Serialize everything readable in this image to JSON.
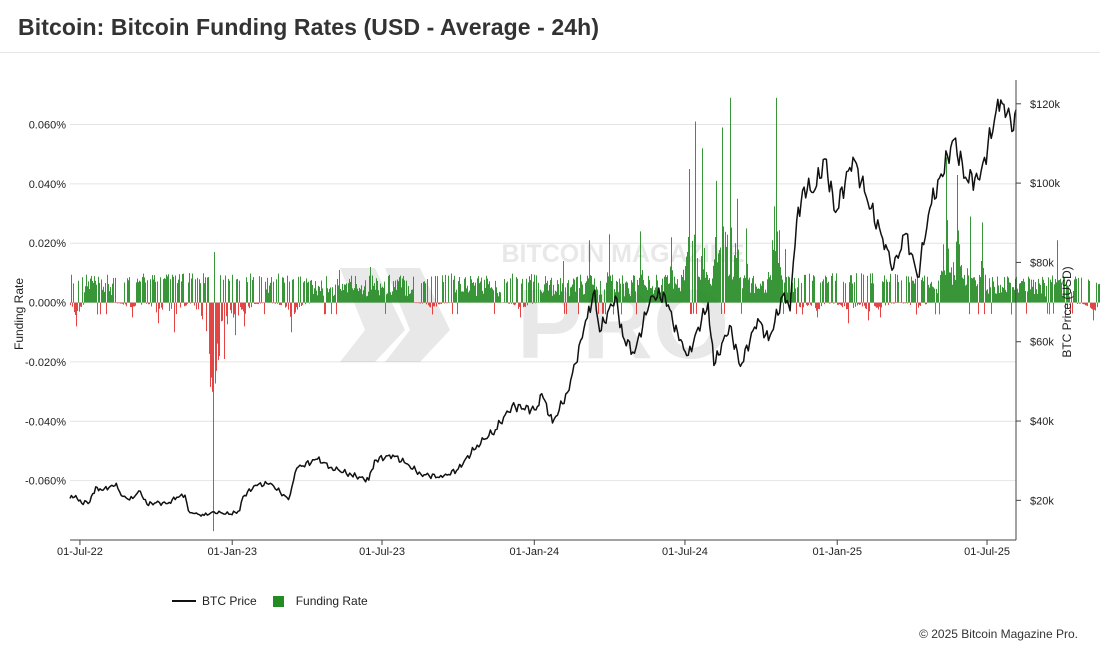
{
  "title": "Bitcoin: Bitcoin Funding Rates (USD - Average - 24h)",
  "copyright": "© 2025 Bitcoin Magazine Pro.",
  "watermark": {
    "top": "BITCOIN MAGAZINE",
    "bottom": "PRO"
  },
  "legend": {
    "price_label": "BTC Price",
    "funding_label": "Funding Rate"
  },
  "colors": {
    "positive": "#228b22",
    "negative": "#e03030",
    "price": "#111111",
    "grid": "#e4e4e4"
  },
  "chart_data": {
    "type": "bar+line",
    "xlabel": "",
    "ylabel_left": "Funding Rate",
    "ylabel_right": "BTC Price (USD)",
    "x_range": [
      "2022-06-19",
      "2025-08-05"
    ],
    "x_ticks": [
      {
        "date": "2022-07-01",
        "label": "01-Jul-22"
      },
      {
        "date": "2023-01-01",
        "label": "01-Jan-23"
      },
      {
        "date": "2023-07-01",
        "label": "01-Jul-23"
      },
      {
        "date": "2024-01-01",
        "label": "01-Jan-24"
      },
      {
        "date": "2024-07-01",
        "label": "01-Jul-24"
      },
      {
        "date": "2025-01-01",
        "label": "01-Jan-25"
      },
      {
        "date": "2025-07-01",
        "label": "01-Jul-25"
      }
    ],
    "left_axis": {
      "range": [
        -0.08,
        0.075
      ],
      "ticks": [
        0.06,
        0.04,
        0.02,
        0.0,
        -0.02,
        -0.04,
        -0.06
      ],
      "labels": [
        "0.060%",
        "0.040%",
        "0.020%",
        "0.000%",
        "-0.020%",
        "-0.040%",
        "-0.060%"
      ]
    },
    "right_axis": {
      "range": [
        10000,
        126000
      ],
      "ticks": [
        120000,
        100000,
        80000,
        60000,
        40000,
        20000
      ],
      "labels": [
        "$120k",
        "$100k",
        "$80k",
        "$60k",
        "$40k",
        "$20k"
      ]
    },
    "grid": true,
    "legend_position": "bottom-left",
    "funding_rate_pct": {
      "positive_spikes": [
        {
          "date": "2022-07-10",
          "value": 0.009
        },
        {
          "date": "2022-11-10",
          "value": 0.017
        },
        {
          "date": "2023-03-15",
          "value": 0.011
        },
        {
          "date": "2023-04-15",
          "value": 0.012
        },
        {
          "date": "2023-10-25",
          "value": 0.014
        },
        {
          "date": "2023-11-20",
          "value": 0.021
        },
        {
          "date": "2023-12-10",
          "value": 0.023
        },
        {
          "date": "2024-01-10",
          "value": 0.024
        },
        {
          "date": "2024-02-10",
          "value": 0.022
        },
        {
          "date": "2024-02-28",
          "value": 0.045
        },
        {
          "date": "2024-03-05",
          "value": 0.061
        },
        {
          "date": "2024-03-12",
          "value": 0.052
        },
        {
          "date": "2024-03-26",
          "value": 0.041
        },
        {
          "date": "2024-04-01",
          "value": 0.059
        },
        {
          "date": "2024-04-09",
          "value": 0.069
        },
        {
          "date": "2024-04-16",
          "value": 0.035
        },
        {
          "date": "2024-04-25",
          "value": 0.025
        },
        {
          "date": "2024-05-21",
          "value": 0.021
        },
        {
          "date": "2024-05-25",
          "value": 0.069
        },
        {
          "date": "2024-06-03",
          "value": 0.018
        },
        {
          "date": "2024-11-11",
          "value": 0.049
        },
        {
          "date": "2024-11-22",
          "value": 0.043
        },
        {
          "date": "2024-12-05",
          "value": 0.029
        },
        {
          "date": "2024-12-17",
          "value": 0.027
        },
        {
          "date": "2025-03-02",
          "value": 0.021
        },
        {
          "date": "2025-04-20",
          "value": 0.011
        },
        {
          "date": "2025-07-14",
          "value": 0.011
        }
      ],
      "negative_spikes": [
        {
          "date": "2022-06-25",
          "value": -0.008
        },
        {
          "date": "2022-08-20",
          "value": -0.005
        },
        {
          "date": "2022-09-15",
          "value": -0.007
        },
        {
          "date": "2022-10-01",
          "value": -0.01
        },
        {
          "date": "2022-11-09",
          "value": -0.077
        },
        {
          "date": "2022-11-12",
          "value": -0.023
        },
        {
          "date": "2022-11-20",
          "value": -0.019
        },
        {
          "date": "2022-12-01",
          "value": -0.011
        },
        {
          "date": "2022-12-10",
          "value": -0.008
        },
        {
          "date": "2023-01-26",
          "value": -0.01
        },
        {
          "date": "2023-06-16",
          "value": -0.004
        },
        {
          "date": "2023-09-12",
          "value": -0.005
        },
        {
          "date": "2024-06-20",
          "value": -0.004
        },
        {
          "date": "2024-07-05",
          "value": -0.005
        },
        {
          "date": "2024-08-05",
          "value": -0.007
        },
        {
          "date": "2024-08-25",
          "value": -0.006
        },
        {
          "date": "2024-09-06",
          "value": -0.005
        },
        {
          "date": "2024-10-12",
          "value": -0.004
        },
        {
          "date": "2025-03-10",
          "value": -0.005
        },
        {
          "date": "2025-04-07",
          "value": -0.006
        },
        {
          "date": "2025-06-22",
          "value": -0.004
        }
      ],
      "baseline_typical": 0.008
    },
    "btc_price_usd": [
      [
        "2022-06-19",
        20500
      ],
      [
        "2022-06-26",
        21200
      ],
      [
        "2022-07-03",
        19300
      ],
      [
        "2022-07-13",
        19600
      ],
      [
        "2022-07-20",
        23400
      ],
      [
        "2022-07-27",
        22600
      ],
      [
        "2022-08-05",
        23200
      ],
      [
        "2022-08-14",
        24300
      ],
      [
        "2022-08-20",
        21200
      ],
      [
        "2022-08-30",
        20100
      ],
      [
        "2022-09-12",
        22300
      ],
      [
        "2022-09-20",
        19000
      ],
      [
        "2022-10-01",
        19400
      ],
      [
        "2022-10-15",
        19200
      ],
      [
        "2022-10-26",
        20800
      ],
      [
        "2022-11-05",
        21300
      ],
      [
        "2022-11-09",
        17400
      ],
      [
        "2022-11-15",
        16700
      ],
      [
        "2022-11-28",
        16200
      ],
      [
        "2022-12-10",
        17100
      ],
      [
        "2022-12-30",
        16500
      ],
      [
        "2023-01-10",
        17400
      ],
      [
        "2023-01-14",
        20900
      ],
      [
        "2023-01-29",
        23800
      ],
      [
        "2023-02-16",
        24300
      ],
      [
        "2023-03-10",
        20200
      ],
      [
        "2023-03-20",
        28100
      ],
      [
        "2023-04-14",
        30400
      ],
      [
        "2023-05-01",
        28300
      ],
      [
        "2023-05-25",
        26400
      ],
      [
        "2023-06-15",
        25100
      ],
      [
        "2023-06-22",
        30100
      ],
      [
        "2023-07-14",
        31400
      ],
      [
        "2023-07-30",
        29300
      ],
      [
        "2023-08-17",
        26600
      ],
      [
        "2023-09-12",
        25800
      ],
      [
        "2023-10-01",
        27900
      ],
      [
        "2023-10-24",
        33900
      ],
      [
        "2023-11-15",
        37800
      ],
      [
        "2023-12-05",
        43800
      ],
      [
        "2024-01-03",
        42800
      ],
      [
        "2024-01-10",
        46900
      ],
      [
        "2024-01-23",
        39500
      ],
      [
        "2024-02-10",
        47200
      ],
      [
        "2024-02-28",
        61000
      ],
      [
        "2024-03-05",
        66000
      ],
      [
        "2024-03-14",
        73000
      ],
      [
        "2024-03-20",
        62500
      ],
      [
        "2024-04-08",
        71500
      ],
      [
        "2024-04-17",
        61300
      ],
      [
        "2024-05-01",
        57100
      ],
      [
        "2024-05-21",
        71400
      ],
      [
        "2024-06-07",
        71600
      ],
      [
        "2024-06-24",
        60300
      ],
      [
        "2024-07-05",
        56600
      ],
      [
        "2024-07-29",
        69800
      ],
      [
        "2024-08-05",
        54000
      ],
      [
        "2024-08-24",
        64100
      ],
      [
        "2024-09-06",
        53800
      ],
      [
        "2024-09-27",
        65800
      ],
      [
        "2024-10-10",
        60300
      ],
      [
        "2024-10-29",
        72300
      ],
      [
        "2024-11-05",
        67800
      ],
      [
        "2024-11-13",
        90500
      ],
      [
        "2024-11-22",
        99000
      ],
      [
        "2024-12-05",
        98300
      ],
      [
        "2024-12-17",
        106100
      ],
      [
        "2024-12-30",
        92600
      ],
      [
        "2025-01-20",
        106500
      ],
      [
        "2025-02-03",
        97800
      ],
      [
        "2025-02-25",
        86000
      ],
      [
        "2025-03-10",
        78600
      ],
      [
        "2025-03-25",
        87300
      ],
      [
        "2025-04-08",
        76300
      ],
      [
        "2025-04-23",
        93700
      ],
      [
        "2025-05-22",
        111000
      ],
      [
        "2025-06-05",
        101500
      ],
      [
        "2025-06-22",
        100800
      ],
      [
        "2025-07-10",
        116000
      ],
      [
        "2025-07-14",
        121100
      ],
      [
        "2025-07-25",
        117500
      ],
      [
        "2025-08-02",
        113300
      ],
      [
        "2025-08-05",
        118500
      ]
    ]
  }
}
